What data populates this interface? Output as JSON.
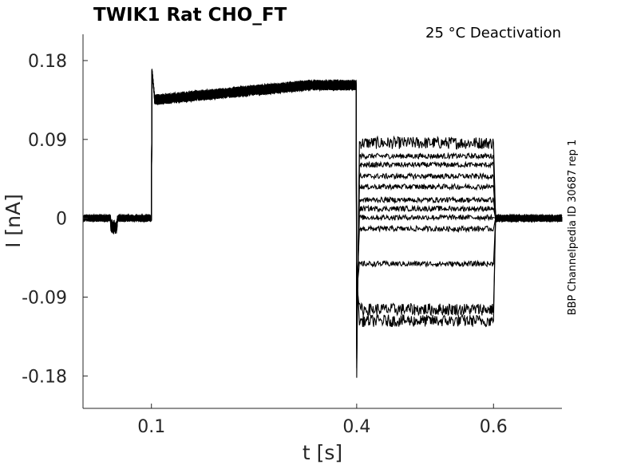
{
  "chart_data": {
    "type": "line",
    "title": "TWIK1  Rat  CHO_FT",
    "condition": "25 °C  Deactivation",
    "side_note": "BBP Channelpedia ID 30687 rep 1",
    "xlabel": "t [s]",
    "ylabel": "I [nA]",
    "xlim": [
      0.0,
      0.7
    ],
    "ylim": [
      -0.217,
      0.21
    ],
    "xticks": [
      {
        "value": 0.1,
        "label": "0.1"
      },
      {
        "value": 0.4,
        "label": "0.4"
      },
      {
        "value": 0.6,
        "label": "0.6"
      }
    ],
    "yticks": [
      {
        "value": 0.18,
        "label": "0.18"
      },
      {
        "value": 0.09,
        "label": "0.09"
      },
      {
        "value": 0.0,
        "label": "0"
      },
      {
        "value": -0.09,
        "label": "-0.09"
      },
      {
        "value": -0.18,
        "label": "-0.18"
      }
    ],
    "grid": false,
    "line_color": "#000000",
    "series_count": 12,
    "protocol_times": {
      "prepulse_start": 0.1,
      "test_start": 0.4,
      "test_end": 0.6
    },
    "prepulse_current": {
      "start": 0.135,
      "end": 0.152
    },
    "baseline_current": 0.0,
    "test_step_currents": [
      0.086,
      0.071,
      0.061,
      0.048,
      0.036,
      0.021,
      0.011,
      0.001,
      -0.012,
      -0.052,
      -0.104,
      -0.117
    ],
    "capacitive_peaks": {
      "at_0_1": 0.175,
      "at_0_4": -0.182
    }
  }
}
